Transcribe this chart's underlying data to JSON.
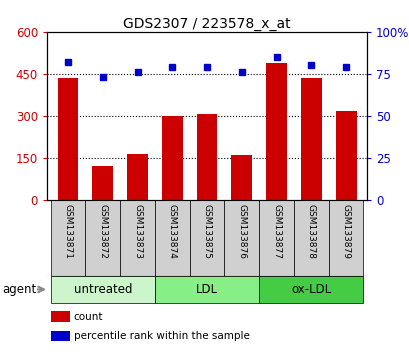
{
  "title": "GDS2307 / 223578_x_at",
  "samples": [
    "GSM133871",
    "GSM133872",
    "GSM133873",
    "GSM133874",
    "GSM133875",
    "GSM133876",
    "GSM133877",
    "GSM133878",
    "GSM133879"
  ],
  "counts": [
    435,
    120,
    165,
    300,
    308,
    160,
    490,
    435,
    318
  ],
  "percentiles": [
    82,
    73,
    76,
    79,
    79,
    76,
    85,
    80,
    79
  ],
  "groups": [
    {
      "label": "untreated",
      "indices": [
        0,
        1,
        2
      ],
      "color": "#ccf5cc"
    },
    {
      "label": "LDL",
      "indices": [
        3,
        4,
        5
      ],
      "color": "#88ee88"
    },
    {
      "label": "ox-LDL",
      "indices": [
        6,
        7,
        8
      ],
      "color": "#44cc44"
    }
  ],
  "bar_color": "#cc0000",
  "dot_color": "#0000cc",
  "cell_bg": "#d0d0d0",
  "left_ylim": [
    0,
    600
  ],
  "left_yticks": [
    0,
    150,
    300,
    450,
    600
  ],
  "left_yticklabels": [
    "0",
    "150",
    "300",
    "450",
    "600"
  ],
  "right_ylim": [
    0,
    100
  ],
  "right_yticks": [
    0,
    25,
    50,
    75,
    100
  ],
  "right_yticklabels": [
    "0",
    "25",
    "50",
    "75",
    "100%"
  ],
  "grid_lines": [
    150,
    300,
    450
  ],
  "legend_items": [
    {
      "label": "count",
      "color": "#cc0000"
    },
    {
      "label": "percentile rank within the sample",
      "color": "#0000cc"
    }
  ],
  "left_tick_color": "#cc0000",
  "right_tick_color": "#0000cc",
  "bar_width": 0.6
}
